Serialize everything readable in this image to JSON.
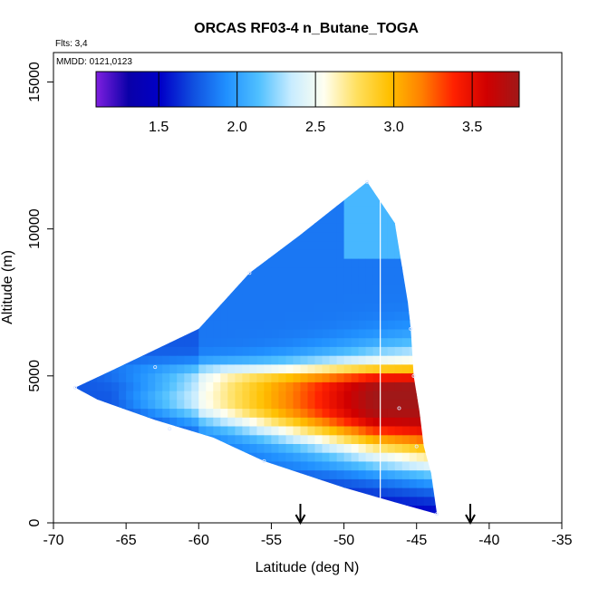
{
  "chart_data": {
    "type": "heatmap",
    "title": "ORCAS RF03-4 n_Butane_TOGA",
    "flights_text": "Flts: 3,4",
    "mmdd_text": "MMDD: 0121,0123",
    "xlabel": "Latitude (deg N)",
    "ylabel": "Altitude (m)",
    "xlim": [
      -70,
      -35
    ],
    "ylim": [
      0,
      16000
    ],
    "xticks": [
      "-70",
      "-65",
      "-60",
      "-55",
      "-50",
      "-45",
      "-40",
      "-35"
    ],
    "yticks": [
      "0",
      "5000",
      "10000",
      "15000"
    ],
    "colorbar": {
      "range": [
        1.1,
        3.8
      ],
      "ticks": [
        "1.5",
        "2.0",
        "2.5",
        "3.0",
        "3.5"
      ],
      "colors": [
        "#7f1fe0",
        "#0a00a8",
        "#0000c8",
        "#1050e0",
        "#2090ff",
        "#50c0ff",
        "#c8ecff",
        "#fffff0",
        "#ffe060",
        "#ffc000",
        "#ff8000",
        "#ff2000",
        "#d00000",
        "#a01818"
      ]
    },
    "markers": [
      {
        "lat": -53,
        "label": ""
      },
      {
        "lat": -41.3,
        "label": ""
      }
    ],
    "vertical_line_lat": -47.5,
    "profile_points": [
      {
        "lat": -68.5,
        "alt": 4600
      },
      {
        "lat": -63,
        "alt": 5300
      },
      {
        "lat": -56.5,
        "alt": 8500
      },
      {
        "lat": -48.4,
        "alt": 11600
      },
      {
        "lat": -45.4,
        "alt": 6600
      },
      {
        "lat": -45.2,
        "alt": 5000
      },
      {
        "lat": -46.2,
        "alt": 3900
      },
      {
        "lat": -45.0,
        "alt": 2600
      },
      {
        "lat": -43.6,
        "alt": 300
      },
      {
        "lat": -55.5,
        "alt": 2100
      },
      {
        "lat": -62,
        "alt": 3200
      }
    ],
    "value_field_notes": [
      {
        "band": "background",
        "value": 1.9
      },
      {
        "band": "core",
        "lat_range": [
          -60,
          -45
        ],
        "alt_center": 4200,
        "peak_value": 3.6
      },
      {
        "band": "surface_south",
        "value": 1.2
      }
    ]
  }
}
